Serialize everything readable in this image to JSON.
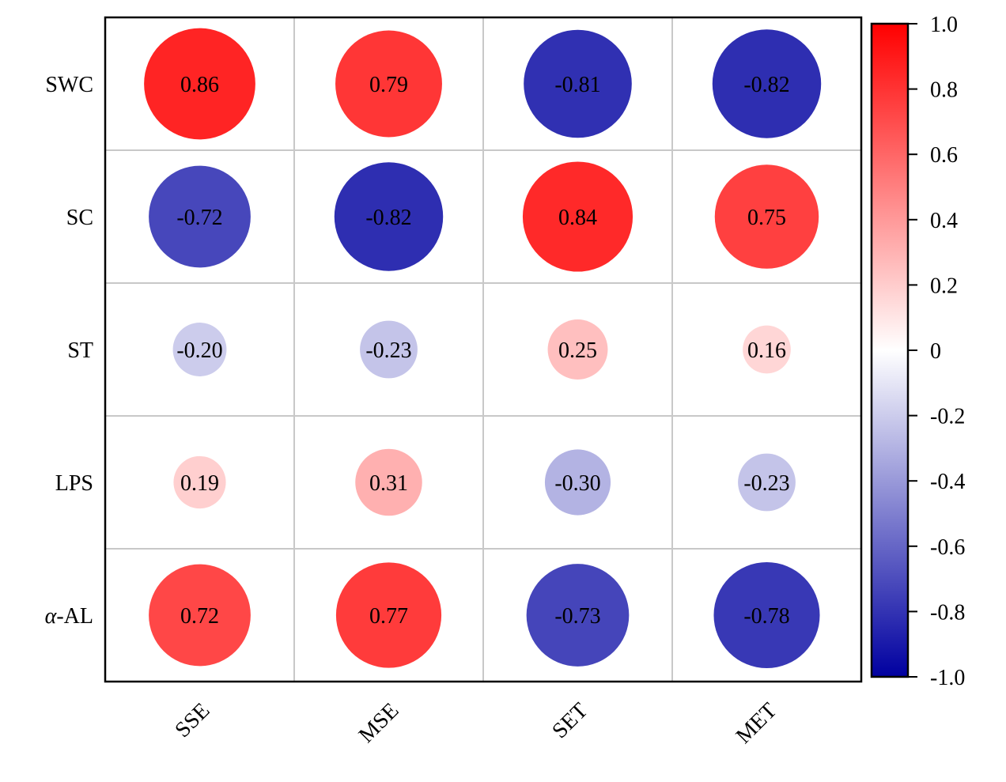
{
  "chart_data": {
    "type": "heatmap",
    "rows": [
      "SWC",
      "SC",
      "ST",
      "LPS",
      "-AL"
    ],
    "row_label_prefix": [
      "",
      "",
      "",
      "",
      "α"
    ],
    "columns": [
      "SSE",
      "MSE",
      "SET",
      "MET"
    ],
    "values": [
      [
        0.86,
        0.79,
        -0.81,
        -0.82
      ],
      [
        -0.72,
        -0.82,
        0.84,
        0.75
      ],
      [
        -0.2,
        -0.23,
        0.25,
        0.16
      ],
      [
        0.19,
        0.31,
        -0.3,
        -0.23
      ],
      [
        0.72,
        0.77,
        -0.73,
        -0.78
      ]
    ],
    "value_labels": [
      [
        "0.86",
        "0.79",
        "-0.81",
        "-0.82"
      ],
      [
        "-0.72",
        "-0.82",
        "0.84",
        "0.75"
      ],
      [
        "-0.20",
        "-0.23",
        "0.25",
        "0.16"
      ],
      [
        "0.19",
        "0.31",
        "-0.30",
        "-0.23"
      ],
      [
        "0.72",
        "0.77",
        "-0.73",
        "-0.78"
      ]
    ],
    "colorbar": {
      "range": [
        -1.0,
        1.0
      ],
      "ticks": [
        "1.0",
        "0.8",
        "0.6",
        "0.4",
        "0.2",
        "0",
        "-0.2",
        "-0.4",
        "-0.6",
        "-0.8",
        "-1.0"
      ],
      "tick_values": [
        1.0,
        0.8,
        0.6,
        0.4,
        0.2,
        0,
        -0.2,
        -0.4,
        -0.6,
        -0.8,
        -1.0
      ],
      "colors": {
        "negative": "#0000a0",
        "zero": "#ffffff",
        "positive": "#ff0000"
      }
    },
    "grid": true
  }
}
